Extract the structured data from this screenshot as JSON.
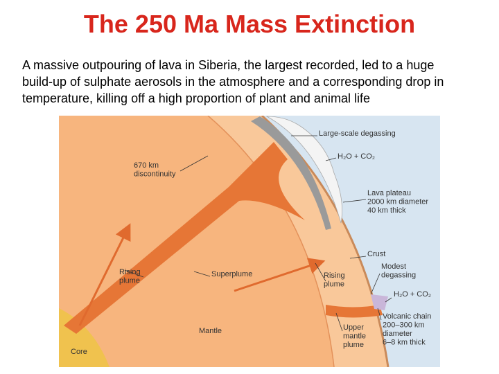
{
  "header": {
    "title": "The 250 Ma Mass Extinction"
  },
  "body": {
    "lines": [
      "A massive outpouring of lava in Siberia, the largest recorded, led to a huge",
      "build-up of sulphate aerosols in the atmosphere and a corresponding drop in",
      "temperature, killing off a high proportion of plant and animal life"
    ]
  },
  "diagram": {
    "labels": [
      {
        "lines": [
          "Large-scale degassing"
        ]
      },
      {
        "lines": [
          "H₂O + CO₂"
        ]
      },
      {
        "lines": [
          "Lava plateau",
          "2000 km diameter",
          "40 km thick"
        ]
      },
      {
        "lines": [
          "670 km",
          "discontinuity"
        ]
      },
      {
        "lines": [
          "Crust"
        ]
      },
      {
        "lines": [
          "Modest",
          "degassing"
        ]
      },
      {
        "lines": [
          "H₂O + CO₂"
        ]
      },
      {
        "lines": [
          "Volcanic chain",
          "200–300 km",
          "diameter",
          "6–8 km thick"
        ]
      },
      {
        "lines": [
          "Rising",
          "plume"
        ]
      },
      {
        "lines": [
          "Superplume"
        ]
      },
      {
        "lines": [
          "Rising",
          "plume"
        ]
      },
      {
        "lines": [
          "Mantle"
        ]
      },
      {
        "lines": [
          "Upper",
          "mantle",
          "plume"
        ]
      },
      {
        "lines": [
          "Core"
        ]
      }
    ]
  }
}
